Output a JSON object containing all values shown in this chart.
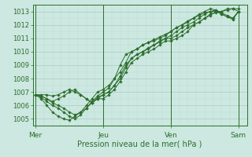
{
  "title": "",
  "xlabel": "Pression niveau de la mer( hPa )",
  "ylabel": "",
  "bg_color": "#cce8e0",
  "grid_color_major": "#aaccc4",
  "grid_color_minor": "#bbddd5",
  "line_color": "#2d6e2d",
  "marker_color": "#2d6e2d",
  "ylim": [
    1004.5,
    1013.5
  ],
  "yticks": [
    1005,
    1006,
    1007,
    1008,
    1009,
    1010,
    1011,
    1012,
    1013
  ],
  "day_labels": [
    "Mer",
    "Jeu",
    "Ven",
    "Sam"
  ],
  "day_positions": [
    0,
    48,
    96,
    144
  ],
  "xlim": [
    -2,
    150
  ],
  "series": [
    [
      0,
      1006.8,
      4,
      1006.7,
      8,
      1006.5,
      12,
      1006.2,
      16,
      1006.0,
      20,
      1005.8,
      24,
      1005.5,
      28,
      1005.3,
      32,
      1005.5,
      36,
      1005.8,
      40,
      1006.2,
      44,
      1006.6,
      48,
      1006.8,
      52,
      1007.0,
      56,
      1007.5,
      60,
      1008.2,
      64,
      1009.0,
      68,
      1009.5,
      72,
      1009.8,
      76,
      1010.0,
      80,
      1010.2,
      84,
      1010.5,
      88,
      1010.8,
      92,
      1011.0,
      96,
      1011.2,
      100,
      1011.5,
      104,
      1011.8,
      108,
      1012.0,
      112,
      1012.2,
      116,
      1012.5,
      120,
      1012.8,
      124,
      1013.0,
      128,
      1013.1,
      132,
      1012.9,
      136,
      1012.7,
      140,
      1012.5,
      144,
      1013.0
    ],
    [
      0,
      1006.8,
      4,
      1006.5,
      8,
      1006.0,
      12,
      1005.5,
      16,
      1005.2,
      20,
      1005.0,
      24,
      1004.9,
      28,
      1005.2,
      32,
      1005.5,
      36,
      1006.0,
      40,
      1006.5,
      44,
      1007.0,
      48,
      1007.2,
      52,
      1007.5,
      56,
      1008.0,
      60,
      1008.5,
      64,
      1009.2,
      68,
      1010.0,
      72,
      1010.2,
      76,
      1010.5,
      80,
      1010.7,
      84,
      1010.8,
      88,
      1011.0,
      92,
      1011.2,
      96,
      1011.5,
      100,
      1011.8,
      104,
      1012.0,
      108,
      1012.2,
      112,
      1012.5,
      116,
      1012.8,
      120,
      1013.0,
      124,
      1013.2,
      128,
      1013.1,
      132,
      1012.8,
      136,
      1012.6,
      140,
      1012.4,
      144,
      1013.0
    ],
    [
      0,
      1006.8,
      4,
      1006.7,
      8,
      1006.5,
      12,
      1006.3,
      16,
      1006.5,
      20,
      1006.7,
      24,
      1007.0,
      28,
      1007.2,
      32,
      1006.8,
      36,
      1006.5,
      40,
      1006.2,
      44,
      1006.5,
      48,
      1006.5,
      52,
      1006.8,
      56,
      1007.2,
      60,
      1007.8,
      64,
      1008.5,
      68,
      1009.2,
      72,
      1009.5,
      76,
      1009.8,
      80,
      1010.0,
      84,
      1010.2,
      88,
      1010.5,
      92,
      1010.8,
      96,
      1010.8,
      100,
      1011.0,
      104,
      1011.2,
      108,
      1011.5,
      112,
      1012.0,
      116,
      1012.2,
      120,
      1012.5,
      124,
      1012.8,
      128,
      1012.9,
      132,
      1013.0,
      136,
      1013.1,
      140,
      1013.2,
      144,
      1013.2
    ],
    [
      0,
      1006.8,
      4,
      1006.6,
      8,
      1006.3,
      12,
      1006.0,
      16,
      1005.8,
      20,
      1005.5,
      24,
      1005.2,
      28,
      1005.0,
      32,
      1005.3,
      36,
      1005.8,
      40,
      1006.3,
      44,
      1006.7,
      48,
      1007.0,
      52,
      1007.3,
      56,
      1008.0,
      60,
      1009.0,
      64,
      1009.8,
      68,
      1010.0,
      72,
      1010.2,
      76,
      1010.5,
      80,
      1010.7,
      84,
      1010.9,
      88,
      1011.1,
      92,
      1011.3,
      96,
      1011.5,
      100,
      1011.8,
      104,
      1012.0,
      108,
      1012.3,
      112,
      1012.5,
      116,
      1012.7,
      120,
      1012.9,
      124,
      1013.0,
      128,
      1013.0,
      132,
      1012.8,
      136,
      1012.6,
      140,
      1012.5,
      144,
      1013.0
    ],
    [
      0,
      1006.8,
      4,
      1006.8,
      8,
      1006.8,
      12,
      1006.7,
      16,
      1006.8,
      20,
      1007.0,
      24,
      1007.2,
      28,
      1007.0,
      32,
      1006.8,
      36,
      1006.5,
      40,
      1006.2,
      44,
      1006.5,
      48,
      1006.8,
      52,
      1007.0,
      56,
      1007.5,
      60,
      1008.0,
      64,
      1008.8,
      68,
      1009.5,
      72,
      1009.8,
      76,
      1010.0,
      80,
      1010.3,
      84,
      1010.5,
      88,
      1010.7,
      92,
      1011.0,
      96,
      1011.0,
      100,
      1011.2,
      104,
      1011.5,
      108,
      1011.8,
      112,
      1012.0,
      116,
      1012.2,
      120,
      1012.5,
      124,
      1012.7,
      128,
      1013.0,
      132,
      1013.0,
      136,
      1013.2,
      140,
      1013.2,
      144,
      1013.0
    ]
  ]
}
